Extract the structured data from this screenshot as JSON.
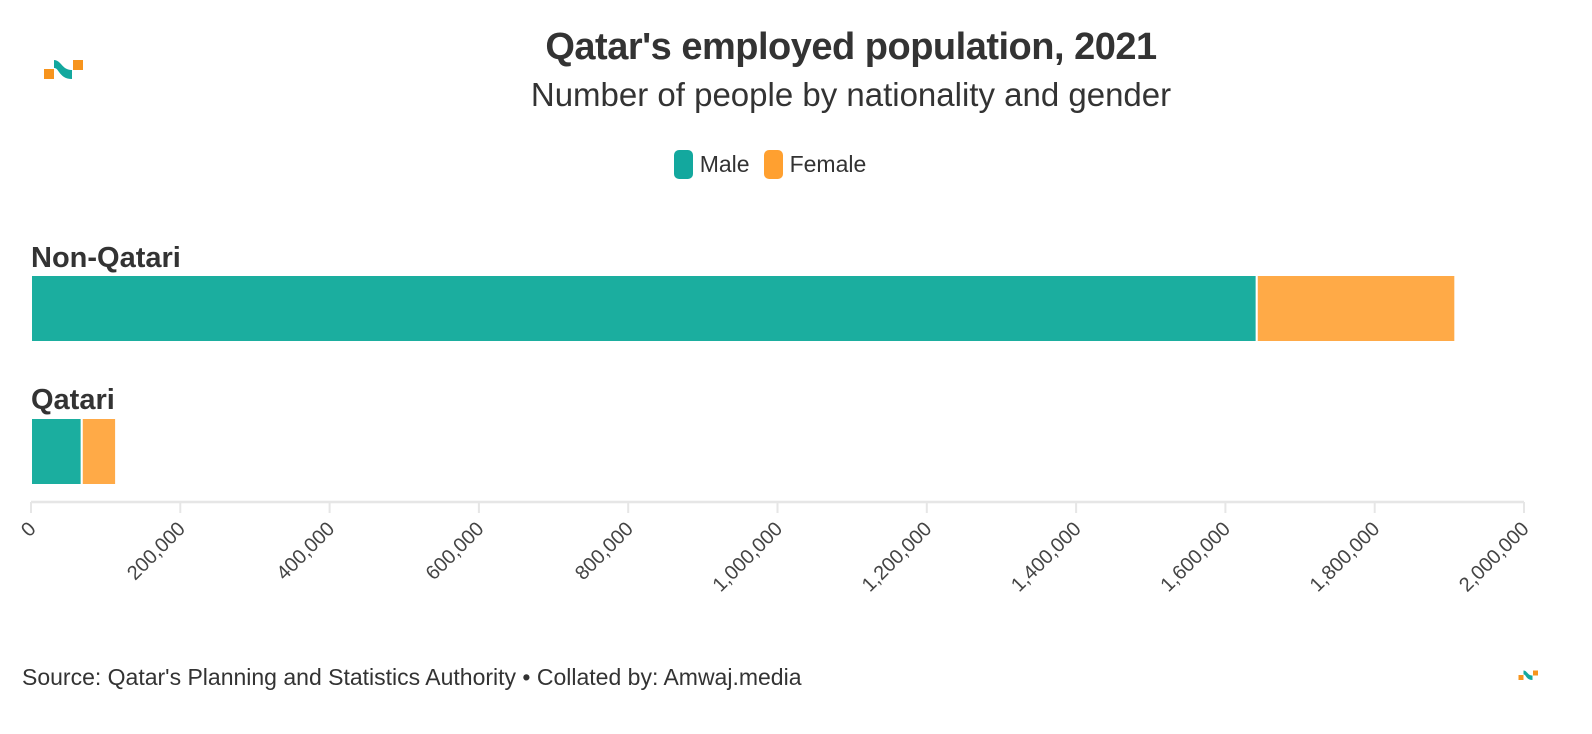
{
  "header": {
    "title": "Qatar's employed population, 2021",
    "subtitle": "Number of people by nationality and gender"
  },
  "logos": {
    "top_left": "amwaj-logo-icon",
    "bottom_right": "amwaj-logo-icon"
  },
  "colors": {
    "male": "#1bae9f",
    "female": "#ffaa47",
    "text": "#333333",
    "axis": "#e6e6e6",
    "logo_teal": "#13a89e",
    "logo_orange": "#f7941d"
  },
  "legend": [
    {
      "label": "Male",
      "color": "#1bae9f"
    },
    {
      "label": "Female",
      "color": "#ffaa47"
    }
  ],
  "footer": {
    "source": "Source: Qatar's Planning and Statistics Authority • Collated by: Amwaj.media"
  },
  "chart_data": {
    "type": "bar",
    "orientation": "horizontal",
    "stacked": true,
    "title": "Qatar's employed population, 2021",
    "subtitle": "Number of people by nationality and gender",
    "categories": [
      "Non-Qatari",
      "Qatari"
    ],
    "series": [
      {
        "name": "Male",
        "values": [
          1642000,
          68000
        ]
      },
      {
        "name": "Female",
        "values": [
          266000,
          46000
        ]
      }
    ],
    "xlabel": "",
    "ylabel": "",
    "xlim": [
      0,
      2000000
    ],
    "ticks": [
      0,
      200000,
      400000,
      600000,
      800000,
      1000000,
      1200000,
      1400000,
      1600000,
      1800000,
      2000000
    ],
    "tick_labels": [
      "0",
      "200,000",
      "400,000",
      "600,000",
      "800,000",
      "1,000,000",
      "1,200,000",
      "1,400,000",
      "1,600,000",
      "1,800,000",
      "2,000,000"
    ],
    "grid": false,
    "legend_position": "top-center"
  }
}
